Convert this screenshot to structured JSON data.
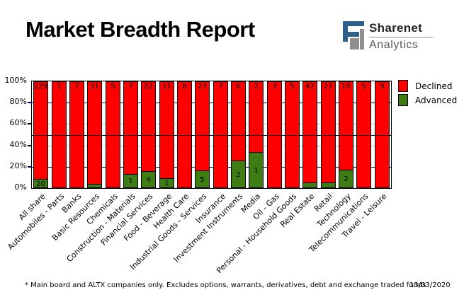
{
  "header": {
    "title": "Market Breadth Report"
  },
  "logo": {
    "name": "Sharenet",
    "sub": "Analytics",
    "icon": "sharenet-s-icon",
    "blue": "#2d5f8b",
    "gray": "#8f8f8f"
  },
  "footer": {
    "note": "* Main board and ALTX companies only. Excludes options, warrants, derivatives, debt and exchange traded funds",
    "date": "13/03/2020"
  },
  "chart_data": {
    "type": "bar",
    "stacked": true,
    "normalized": "percent_of_total",
    "title": "Market Breadth Report",
    "categories": [
      "All share",
      "Automobiles - Parts",
      "Banks",
      "Basic Resources",
      "Chemicals",
      "Construction - Materials",
      "Financial Services",
      "Food - Beverage",
      "Health Care",
      "Industrial Goods - Services",
      "Insurance",
      "Investment Instruments",
      "Media",
      "Oil - Gas",
      "Personal - Household Goods",
      "Real Estate",
      "Retail",
      "Technology",
      "Telecommunications",
      "Travel - Leisure"
    ],
    "series": [
      {
        "name": "Declined",
        "color": "#ff0000",
        "values": [
          229,
          1,
          7,
          31,
          5,
          7,
          22,
          11,
          8,
          27,
          7,
          6,
          2,
          3,
          5,
          42,
          21,
          10,
          5,
          9
        ]
      },
      {
        "name": "Advanced",
        "color": "#3d7d12",
        "values": [
          20,
          0,
          0,
          1,
          0,
          1,
          4,
          1,
          0,
          5,
          0,
          2,
          1,
          0,
          0,
          2,
          1,
          2,
          0,
          0
        ]
      }
    ],
    "y_ticks": [
      "100%",
      "80%",
      "60%",
      "40%",
      "20%",
      "0%"
    ],
    "ylim": [
      0,
      100
    ],
    "reference_line_percent": 50,
    "gridlines": [
      {
        "percent": 80,
        "color": "#000080",
        "tick": "#000080"
      },
      {
        "percent": 60,
        "color": "#c0c0c0",
        "tick": "#000000"
      },
      {
        "percent": 40,
        "color": "#c0c0c0",
        "tick": "#000000"
      },
      {
        "percent": 20,
        "color": "#000080",
        "tick": "#000080"
      }
    ],
    "legend_position": "right-top",
    "grid": "partial-behind-bars"
  }
}
